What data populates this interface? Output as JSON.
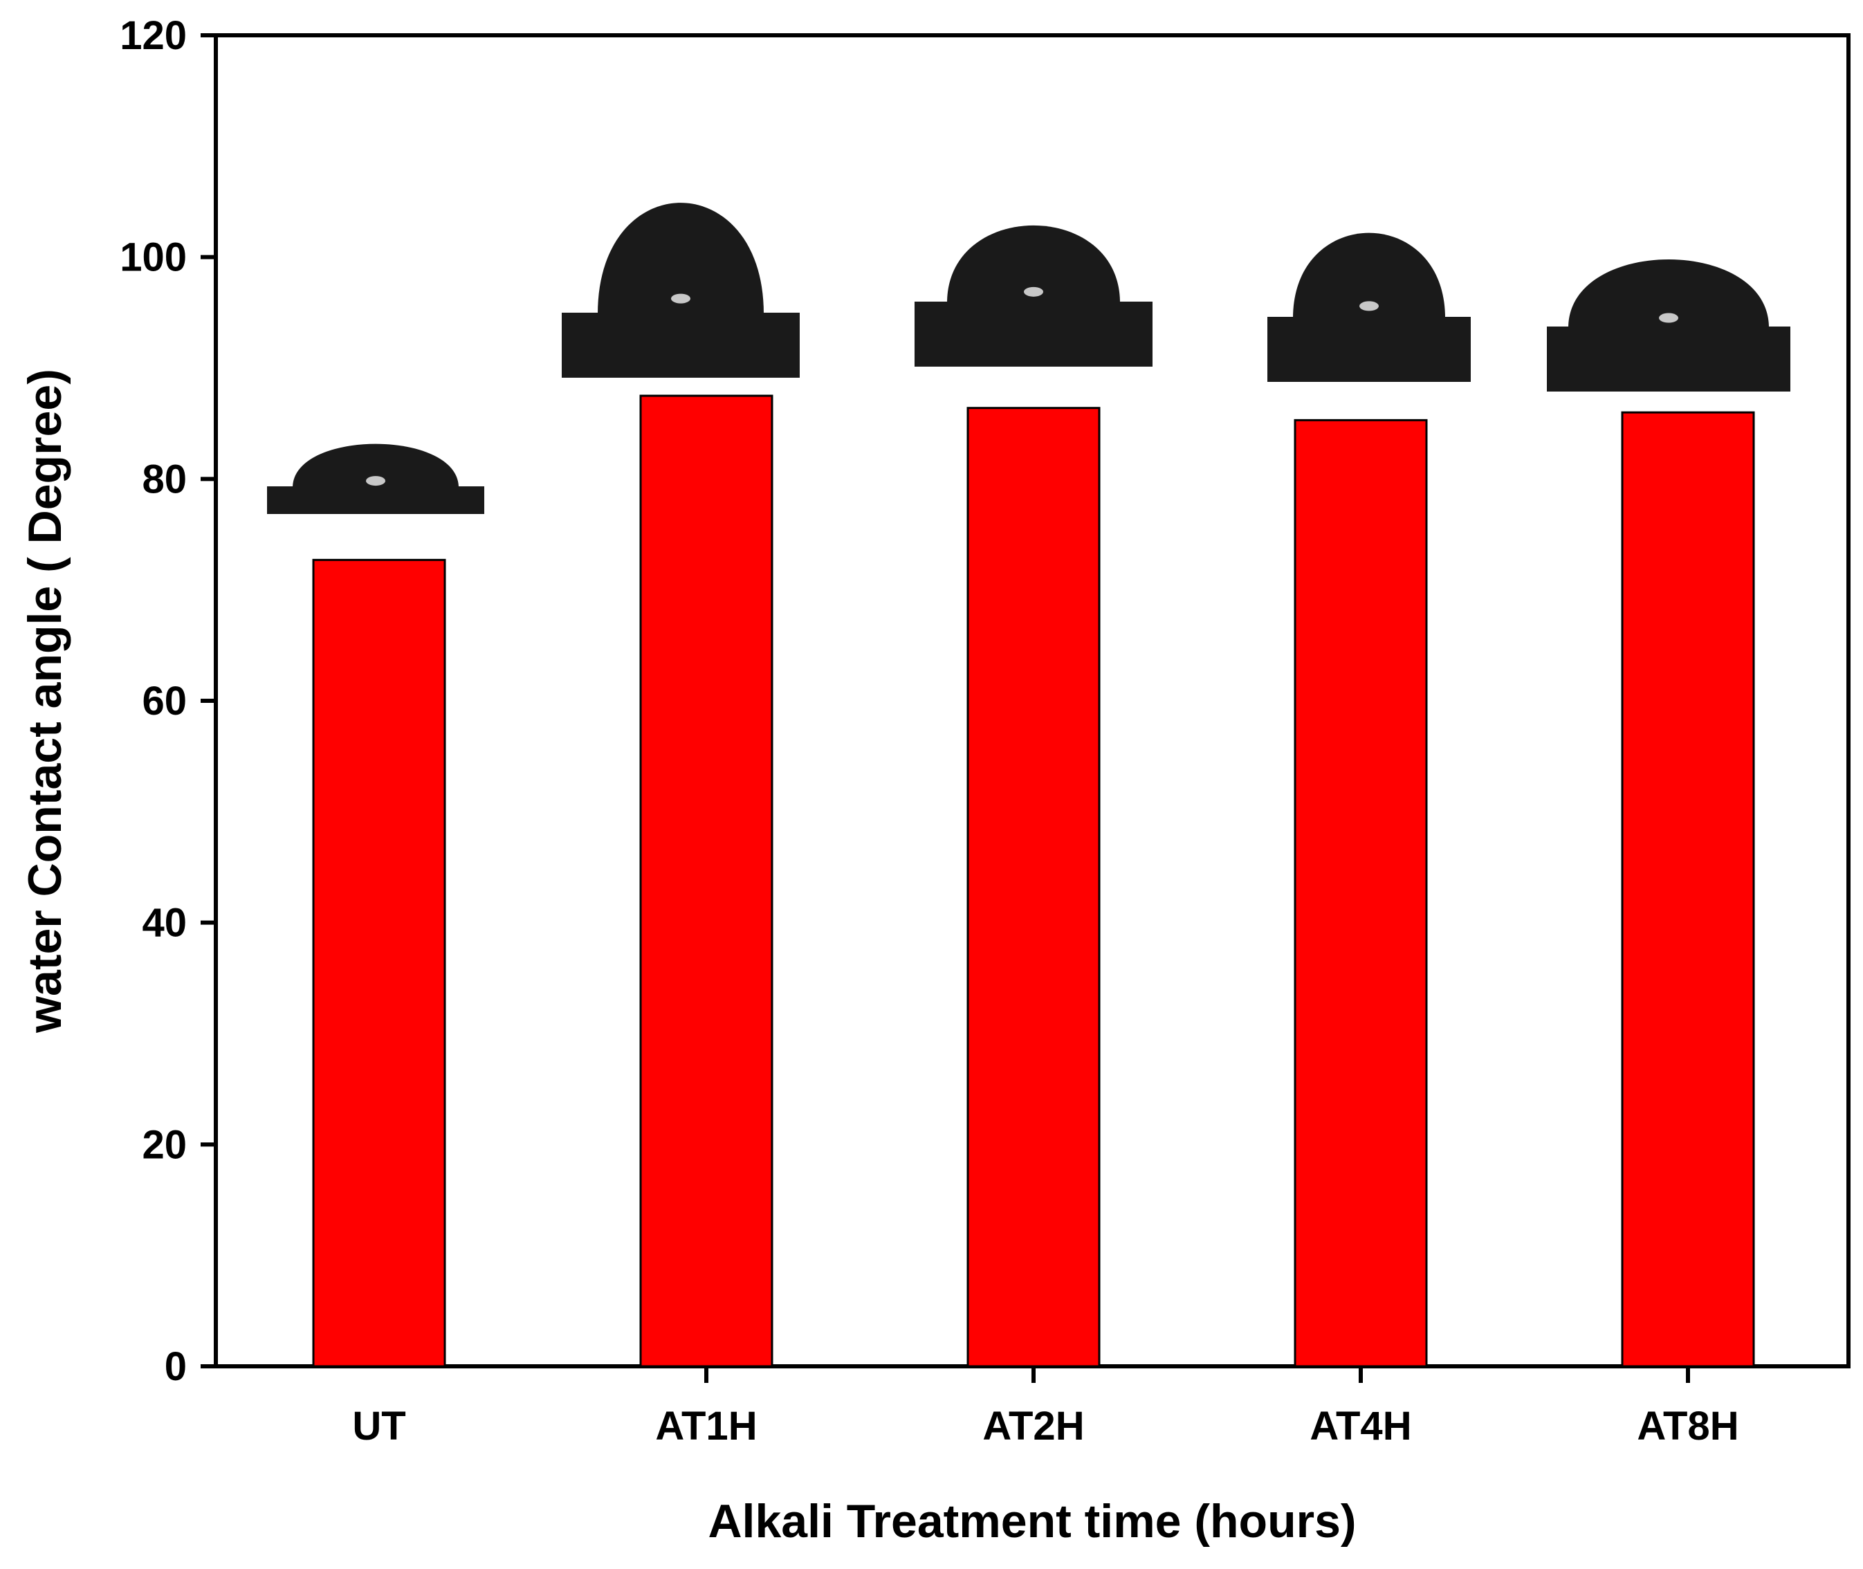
{
  "colors": {
    "bar": "#ff0000",
    "bar_edge": "#000000",
    "axis": "#000000",
    "droplet": "#1a1a1a",
    "background": "#ffffff"
  },
  "icons": [
    "water-droplet-icon"
  ],
  "chart_data": {
    "type": "bar",
    "title": "",
    "xlabel": "Alkali Treatment time (hours)",
    "ylabel": "water Contact angle ( Degree)",
    "categories": [
      "UT",
      "AT1H",
      "AT2H",
      "AT4H",
      "AT8H"
    ],
    "values": [
      72.7,
      87.5,
      86.4,
      85.3,
      86.0
    ],
    "ylim": [
      0,
      120
    ],
    "yticks": [
      0,
      20,
      40,
      60,
      80,
      100,
      120
    ],
    "grid": false,
    "legend": "none",
    "insets": "water droplet photographs above each bar"
  }
}
